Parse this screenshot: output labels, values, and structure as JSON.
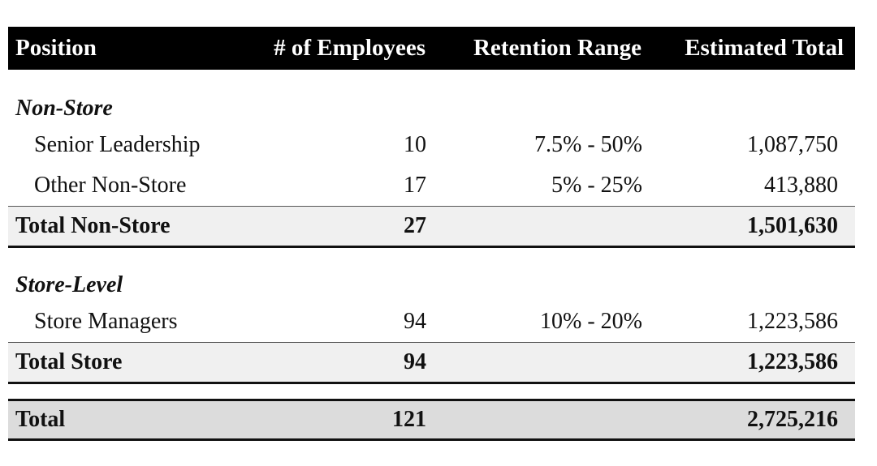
{
  "table": {
    "headers": [
      "Position",
      "# of Employees",
      "Retention Range",
      "Estimated Total"
    ],
    "sections": [
      {
        "title": "Non-Store",
        "rows": [
          {
            "position": "Senior Leadership",
            "employees": "10",
            "range": "7.5% - 50%",
            "total": "1,087,750"
          },
          {
            "position": "Other Non-Store",
            "employees": "17",
            "range": "5% - 25%",
            "total": "413,880"
          }
        ],
        "subtotal": {
          "label": "Total Non-Store",
          "employees": "27",
          "total": "1,501,630"
        }
      },
      {
        "title": "Store-Level",
        "rows": [
          {
            "position": "Store Managers",
            "employees": "94",
            "range": "10% - 20%",
            "total": "1,223,586"
          }
        ],
        "subtotal": {
          "label": "Total Store",
          "employees": "94",
          "total": "1,223,586"
        }
      }
    ],
    "grand_total": {
      "label": "Total",
      "employees": "121",
      "total": "2,725,216"
    }
  }
}
